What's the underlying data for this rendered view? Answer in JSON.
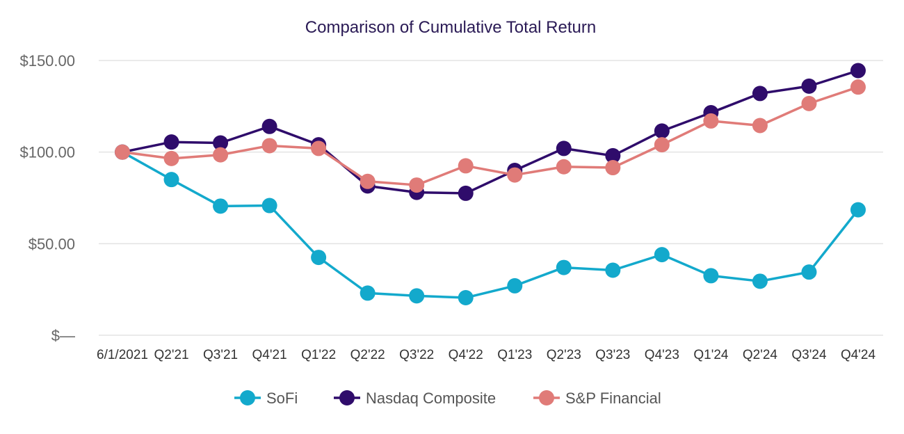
{
  "chart_data": {
    "type": "line",
    "title": "Comparison of Cumulative Total Return",
    "xlabel": "",
    "ylabel": "",
    "ylim": [
      0,
      150
    ],
    "yticks": [
      {
        "value": 0,
        "label": "$—"
      },
      {
        "value": 50,
        "label": "$50.00"
      },
      {
        "value": 100,
        "label": "$100.00"
      },
      {
        "value": 150,
        "label": "$150.00"
      }
    ],
    "categories": [
      "6/1/2021",
      "Q2'21",
      "Q3'21",
      "Q4'21",
      "Q1'22",
      "Q2'22",
      "Q3'22",
      "Q4'22",
      "Q1'23",
      "Q2'23",
      "Q3'23",
      "Q4'23",
      "Q1'24",
      "Q2'24",
      "Q3'24",
      "Q4'24"
    ],
    "series": [
      {
        "name": "SoFi",
        "color": "#13a9cc",
        "values": [
          100,
          85,
          70.5,
          70.8,
          42.5,
          23,
          21.5,
          20.5,
          27,
          37,
          35.5,
          44,
          32.5,
          29.5,
          34.5,
          68.5
        ]
      },
      {
        "name": "Nasdaq Composite",
        "color": "#2f0c6b",
        "values": [
          100,
          105.5,
          105,
          114,
          104,
          81.5,
          78,
          77.5,
          90,
          102,
          98,
          111.5,
          121.5,
          132,
          136,
          144.5
        ]
      },
      {
        "name": "S&P Financial",
        "color": "#e07b78",
        "values": [
          100,
          96.5,
          98.5,
          103.5,
          102,
          84,
          82,
          92.5,
          87.5,
          92,
          91.5,
          104,
          117,
          114.5,
          126.5,
          135.5
        ]
      }
    ],
    "legend_position": "bottom-center",
    "grid": true
  }
}
